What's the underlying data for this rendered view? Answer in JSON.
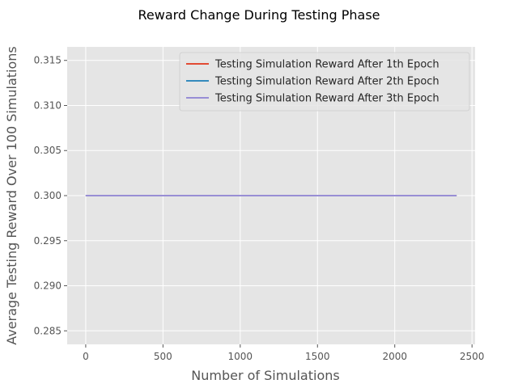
{
  "chart_data": {
    "type": "line",
    "title": "Reward Change During Testing Phase",
    "xlabel": "Number of Simulations",
    "ylabel": "Average Testing Reward Over 100 Simulations",
    "xlim": [
      -120,
      2520
    ],
    "ylim": [
      0.2835,
      0.3165
    ],
    "xticks": [
      0,
      500,
      1000,
      1500,
      2000,
      2500
    ],
    "xtick_labels": [
      "0",
      "500",
      "1000",
      "1500",
      "2000",
      "2500"
    ],
    "yticks": [
      0.285,
      0.29,
      0.295,
      0.3,
      0.305,
      0.31,
      0.315
    ],
    "ytick_labels": [
      "0.285",
      "0.290",
      "0.295",
      "0.300",
      "0.305",
      "0.310",
      "0.315"
    ],
    "grid": true,
    "legend_position": "top-right",
    "series": [
      {
        "name": "Testing Simulation Reward After 1th Epoch",
        "color": "#E24A33",
        "x": [
          0,
          2400
        ],
        "y": [
          0.3,
          0.3
        ]
      },
      {
        "name": "Testing Simulation Reward After 2th Epoch",
        "color": "#348ABD",
        "x": [
          0,
          2400
        ],
        "y": [
          0.3,
          0.3
        ]
      },
      {
        "name": "Testing Simulation Reward After 3th Epoch",
        "color": "#988ED5",
        "x": [
          0,
          2400
        ],
        "y": [
          0.3,
          0.3
        ]
      }
    ]
  }
}
